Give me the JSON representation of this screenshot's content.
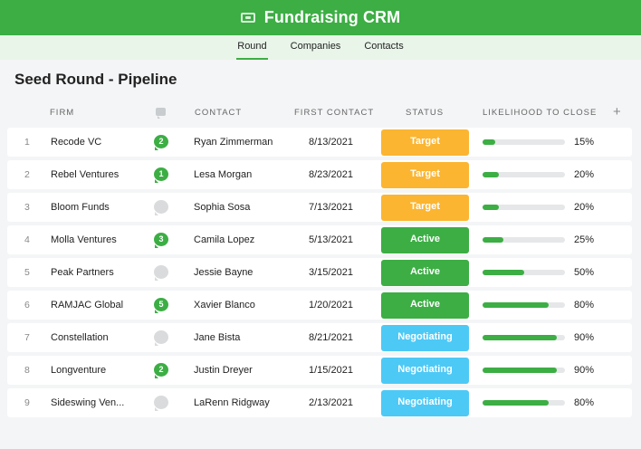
{
  "app": {
    "title": "Fundraising CRM"
  },
  "tabs": [
    {
      "label": "Round",
      "active": true
    },
    {
      "label": "Companies",
      "active": false
    },
    {
      "label": "Contacts",
      "active": false
    }
  ],
  "page": {
    "title": "Seed Round - Pipeline"
  },
  "columns": {
    "firm": "FIRM",
    "comments_icon": "comment-icon",
    "contact": "CONTACT",
    "first_contact": "FIRST CONTACT",
    "status": "STATUS",
    "likelihood": "LIKELIHOOD TO CLOSE",
    "add": "+"
  },
  "colors": {
    "brand": "#3cae44",
    "target": "#fbb531",
    "active": "#3cae44",
    "negotiating": "#4dc9f6"
  },
  "rows": [
    {
      "idx": "1",
      "firm": "Recode VC",
      "comments": "2",
      "contact": "Ryan Zimmerman",
      "first_contact": "8/13/2021",
      "status": "Target",
      "status_type": "target",
      "likelihood": 15,
      "likelihood_label": "15%"
    },
    {
      "idx": "2",
      "firm": "Rebel Ventures",
      "comments": "1",
      "contact": "Lesa Morgan",
      "first_contact": "8/23/2021",
      "status": "Target",
      "status_type": "target",
      "likelihood": 20,
      "likelihood_label": "20%"
    },
    {
      "idx": "3",
      "firm": "Bloom Funds",
      "comments": "",
      "contact": "Sophia Sosa",
      "first_contact": "7/13/2021",
      "status": "Target",
      "status_type": "target",
      "likelihood": 20,
      "likelihood_label": "20%"
    },
    {
      "idx": "4",
      "firm": "Molla Ventures",
      "comments": "3",
      "contact": "Camila Lopez",
      "first_contact": "5/13/2021",
      "status": "Active",
      "status_type": "active",
      "likelihood": 25,
      "likelihood_label": "25%"
    },
    {
      "idx": "5",
      "firm": "Peak Partners",
      "comments": "",
      "contact": "Jessie Bayne",
      "first_contact": "3/15/2021",
      "status": "Active",
      "status_type": "active",
      "likelihood": 50,
      "likelihood_label": "50%"
    },
    {
      "idx": "6",
      "firm": "RAMJAC Global",
      "comments": "5",
      "contact": "Xavier Blanco",
      "first_contact": "1/20/2021",
      "status": "Active",
      "status_type": "active",
      "likelihood": 80,
      "likelihood_label": "80%"
    },
    {
      "idx": "7",
      "firm": "Constellation",
      "comments": "",
      "contact": "Jane Bista",
      "first_contact": "8/21/2021",
      "status": "Negotiating",
      "status_type": "negotiating",
      "likelihood": 90,
      "likelihood_label": "90%"
    },
    {
      "idx": "8",
      "firm": "Longventure",
      "comments": "2",
      "contact": "Justin Dreyer",
      "first_contact": "1/15/2021",
      "status": "Negotiating",
      "status_type": "negotiating",
      "likelihood": 90,
      "likelihood_label": "90%"
    },
    {
      "idx": "9",
      "firm": "Sideswing Ven...",
      "comments": "",
      "contact": "LaRenn Ridgway",
      "first_contact": "2/13/2021",
      "status": "Negotiating",
      "status_type": "negotiating",
      "likelihood": 80,
      "likelihood_label": "80%"
    }
  ]
}
